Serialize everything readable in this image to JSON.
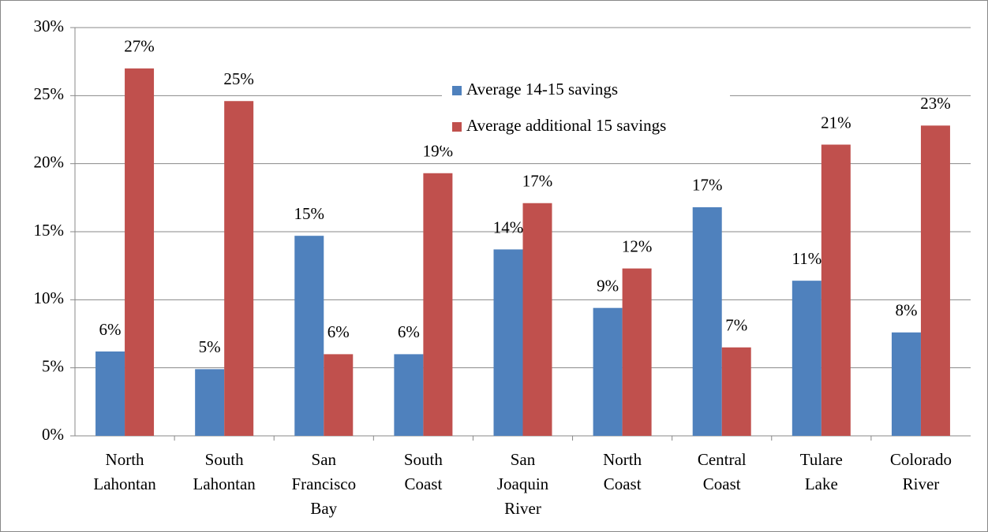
{
  "chart_data": {
    "type": "bar",
    "categories": [
      [
        "North",
        "Lahontan"
      ],
      [
        "South",
        "Lahontan"
      ],
      [
        "San",
        "Francisco",
        "Bay"
      ],
      [
        "South",
        "Coast"
      ],
      [
        "San",
        "Joaquin",
        "River"
      ],
      [
        "North",
        "Coast"
      ],
      [
        "Central",
        "Coast"
      ],
      [
        "Tulare",
        "Lake"
      ],
      [
        "Colorado",
        "River"
      ]
    ],
    "series": [
      {
        "name": "Average 14-15 savings",
        "color": "#4f81bd",
        "values": [
          6.2,
          4.9,
          14.7,
          6.0,
          13.7,
          9.4,
          16.8,
          11.4,
          7.6
        ],
        "value_labels": [
          "6%",
          "5%",
          "15%",
          "6%",
          "14%",
          "9%",
          "17%",
          "11%",
          "8%"
        ]
      },
      {
        "name": "Average additional 15 savings",
        "color": "#c0504d",
        "values": [
          27.0,
          24.6,
          6.0,
          19.3,
          17.1,
          12.3,
          6.5,
          21.4,
          22.8
        ],
        "value_labels": [
          "27%",
          "25%",
          "6%",
          "19%",
          "17%",
          "12%",
          "7%",
          "21%",
          "23%"
        ]
      }
    ],
    "ylim": [
      0,
      30
    ],
    "yticks": [
      {
        "value": 0,
        "label": "0%"
      },
      {
        "value": 5,
        "label": "5%"
      },
      {
        "value": 10,
        "label": "10%"
      },
      {
        "value": 15,
        "label": "15%"
      },
      {
        "value": 20,
        "label": "20%"
      },
      {
        "value": 25,
        "label": "25%"
      },
      {
        "value": 30,
        "label": "30%"
      }
    ],
    "grid": true,
    "legend": "top-center"
  }
}
